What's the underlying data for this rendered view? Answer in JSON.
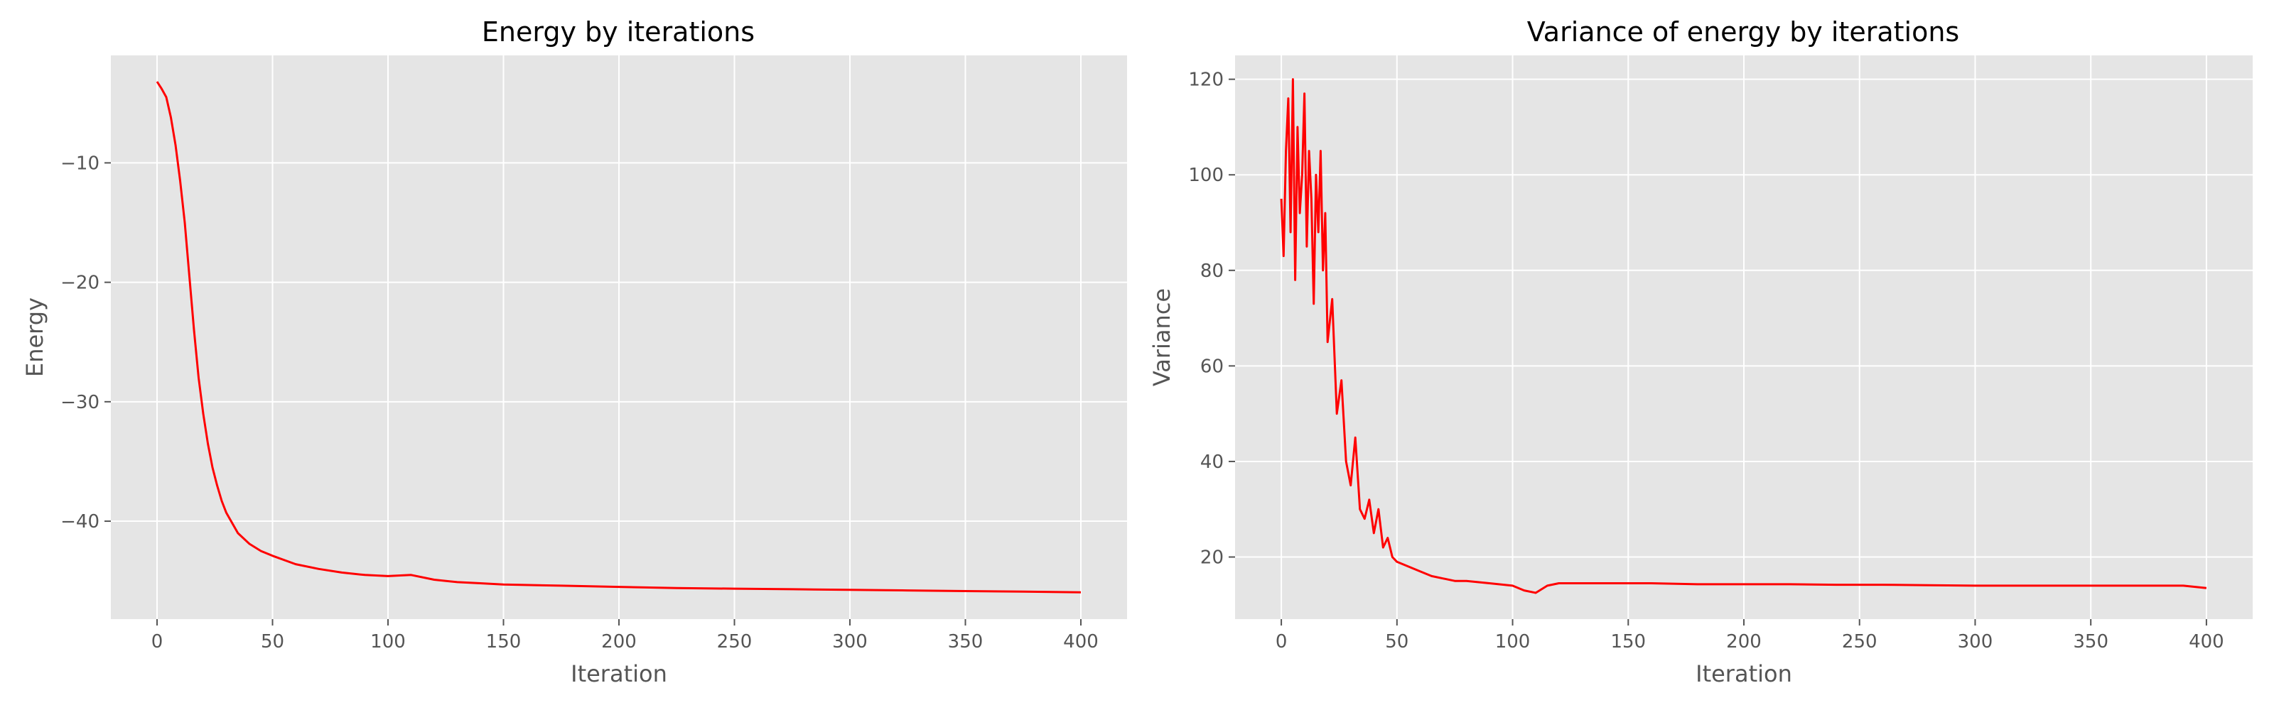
{
  "chart_data": [
    {
      "type": "line",
      "title": "Energy by iterations",
      "xlabel": "Iteration",
      "ylabel": "Energy",
      "xlim": [
        -20,
        420
      ],
      "ylim": [
        -48.2,
        -1.0
      ],
      "xticks": [
        0,
        50,
        100,
        150,
        200,
        250,
        300,
        350,
        400
      ],
      "xtick_labels": [
        "0",
        "50",
        "100",
        "150",
        "200",
        "250",
        "300",
        "350",
        "400"
      ],
      "yticks": [
        -10,
        -20,
        -30,
        -40
      ],
      "ytick_labels": [
        "−10",
        "−20",
        "−30",
        "−40"
      ],
      "grid": true,
      "legend": "none",
      "series": [
        {
          "color": "#ff0000",
          "x": [
            0,
            2,
            4,
            6,
            8,
            10,
            12,
            14,
            16,
            18,
            20,
            22,
            24,
            26,
            28,
            30,
            35,
            40,
            45,
            50,
            60,
            70,
            80,
            90,
            100,
            110,
            120,
            130,
            140,
            150,
            175,
            200,
            225,
            250,
            275,
            300,
            325,
            350,
            375,
            400
          ],
          "y": [
            -3.2,
            -3.8,
            -4.5,
            -6.2,
            -8.5,
            -11.5,
            -15.0,
            -19.5,
            -24.0,
            -28.0,
            -31.0,
            -33.5,
            -35.5,
            -37.0,
            -38.3,
            -39.3,
            -41.0,
            -41.9,
            -42.5,
            -42.9,
            -43.6,
            -44.0,
            -44.3,
            -44.5,
            -44.6,
            -44.5,
            -44.9,
            -45.1,
            -45.2,
            -45.3,
            -45.4,
            -45.5,
            -45.6,
            -45.65,
            -45.7,
            -45.75,
            -45.8,
            -45.85,
            -45.9,
            -45.95
          ]
        }
      ]
    },
    {
      "type": "line",
      "title": "Variance of energy by iterations",
      "xlabel": "Iteration",
      "ylabel": "Variance",
      "xlim": [
        -20,
        420
      ],
      "ylim": [
        7,
        125
      ],
      "xticks": [
        0,
        50,
        100,
        150,
        200,
        250,
        300,
        350,
        400
      ],
      "xtick_labels": [
        "0",
        "50",
        "100",
        "150",
        "200",
        "250",
        "300",
        "350",
        "400"
      ],
      "yticks": [
        20,
        40,
        60,
        80,
        100,
        120
      ],
      "ytick_labels": [
        "20",
        "40",
        "60",
        "80",
        "100",
        "120"
      ],
      "grid": true,
      "legend": "none",
      "series": [
        {
          "color": "#ff0000",
          "x": [
            0,
            1,
            2,
            3,
            4,
            5,
            6,
            7,
            8,
            9,
            10,
            11,
            12,
            13,
            14,
            15,
            16,
            17,
            18,
            19,
            20,
            22,
            24,
            26,
            28,
            30,
            32,
            34,
            36,
            38,
            40,
            42,
            44,
            46,
            48,
            50,
            55,
            60,
            65,
            70,
            75,
            80,
            90,
            100,
            105,
            110,
            115,
            120,
            140,
            160,
            180,
            200,
            220,
            240,
            260,
            280,
            300,
            320,
            340,
            360,
            380,
            390,
            400
          ],
          "y": [
            95,
            83,
            105,
            116,
            88,
            120,
            78,
            110,
            92,
            100,
            117,
            85,
            105,
            95,
            73,
            100,
            88,
            105,
            80,
            92,
            65,
            74,
            50,
            57,
            40,
            35,
            45,
            30,
            28,
            32,
            25,
            30,
            22,
            24,
            20,
            19,
            18,
            17,
            16,
            15.5,
            15,
            15,
            14.5,
            14,
            13,
            12.5,
            14,
            14.5,
            14.5,
            14.5,
            14.3,
            14.3,
            14.3,
            14.2,
            14.2,
            14.1,
            14,
            14,
            14,
            14,
            14,
            14,
            13.5
          ]
        }
      ]
    }
  ]
}
